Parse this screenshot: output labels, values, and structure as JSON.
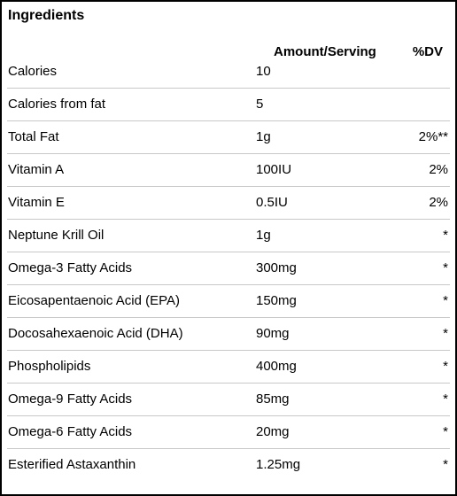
{
  "title": "Ingredients",
  "columns": {
    "amount": "Amount/Serving",
    "dv": "%DV"
  },
  "rows": [
    {
      "name": "Calories",
      "amount": "10",
      "dv": ""
    },
    {
      "name": "Calories from fat",
      "amount": "5",
      "dv": ""
    },
    {
      "name": "Total Fat",
      "amount": "1g",
      "dv": "2%**"
    },
    {
      "name": "Vitamin A",
      "amount": "100IU",
      "dv": "2%"
    },
    {
      "name": "Vitamin E",
      "amount": "0.5IU",
      "dv": "2%"
    },
    {
      "name": "Neptune Krill Oil",
      "amount": "1g",
      "dv": "*"
    },
    {
      "name": "Omega-3 Fatty Acids",
      "amount": "300mg",
      "dv": "*"
    },
    {
      "name": "Eicosapentaenoic Acid (EPA)",
      "amount": "150mg",
      "dv": "*"
    },
    {
      "name": "Docosahexaenoic Acid (DHA)",
      "amount": "90mg",
      "dv": "*"
    },
    {
      "name": "Phospholipids",
      "amount": "400mg",
      "dv": "*"
    },
    {
      "name": "Omega-9 Fatty Acids",
      "amount": "85mg",
      "dv": "*"
    },
    {
      "name": "Omega-6 Fatty Acids",
      "amount": "20mg",
      "dv": "*"
    },
    {
      "name": "Esterified Astaxanthin",
      "amount": "1.25mg",
      "dv": "*"
    }
  ]
}
